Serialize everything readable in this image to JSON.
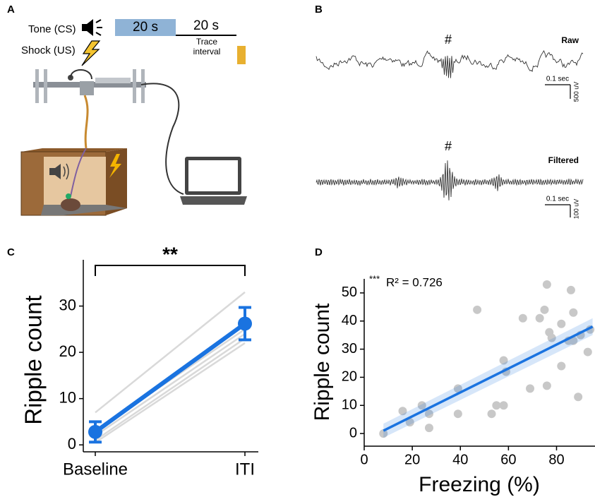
{
  "panel_labels": [
    "A",
    "B",
    "C",
    "D"
  ],
  "panel_a": {
    "tone_label": "Tone (CS)",
    "shock_label": "Shock (US)",
    "tone_duration": "20 s",
    "trace_duration": "20 s",
    "trace_label": [
      "Trace",
      "interval"
    ]
  },
  "panel_b": {
    "traces": [
      {
        "label": "Raw",
        "marker": "#",
        "time_scale": "0.1 sec",
        "amplitude_scale": "500 uV"
      },
      {
        "label": "Filtered",
        "marker": "#",
        "time_scale": "0.1 sec",
        "amplitude_scale": "100 uV"
      }
    ]
  },
  "chart_data": [
    {
      "type": "line",
      "ylabel": "Ripple count",
      "categories": [
        "Baseline",
        "ITI"
      ],
      "ylim": [
        -1.5,
        40
      ],
      "yticks": [
        0,
        10,
        20,
        30
      ],
      "annotation": "**",
      "series": [
        {
          "color": "#d9d9d9",
          "values": [
            7,
            33
          ]
        },
        {
          "color": "#d9d9d9",
          "values": [
            3,
            25
          ]
        },
        {
          "color": "#d9d9d9",
          "values": [
            2,
            24
          ]
        },
        {
          "color": "#d9d9d9",
          "values": [
            1,
            23
          ]
        },
        {
          "color": "#d9d9d9",
          "values": [
            0.5,
            22
          ]
        },
        {
          "color": "#1a73e0",
          "values": [
            2.8,
            26.2
          ],
          "error": [
            2.2,
            3.5
          ]
        }
      ]
    },
    {
      "type": "scatter",
      "xlabel": "Freezing (%)",
      "ylabel": "Ripple count",
      "xlim": [
        0,
        96
      ],
      "ylim": [
        -4.5,
        55
      ],
      "xticks": [
        0,
        20,
        40,
        60,
        80
      ],
      "yticks": [
        0,
        10,
        20,
        30,
        40,
        50
      ],
      "significance": "***",
      "annotation": "R² = 0.726",
      "series": [
        {
          "color": "#c8c8c8",
          "x": [
            8,
            16,
            19,
            24,
            27,
            27,
            39,
            39,
            47,
            58,
            59,
            53,
            55,
            58,
            66,
            69,
            73,
            75,
            76,
            77,
            78,
            76,
            82,
            82,
            86,
            87,
            85,
            87,
            89,
            90,
            93,
            94
          ],
          "values": [
            0,
            8,
            4,
            10,
            7,
            2,
            16,
            7,
            44,
            26,
            22,
            7,
            10,
            10,
            41,
            16,
            41,
            44,
            53,
            36,
            34,
            17,
            39,
            24,
            51,
            43,
            33,
            33,
            13,
            35,
            29,
            37
          ]
        }
      ],
      "fit": {
        "color": "#1a73e0",
        "x": [
          8,
          95
        ],
        "values": [
          1,
          38
        ],
        "lower": [
          -1.5,
          35
        ],
        "upper": [
          3.5,
          41
        ]
      }
    }
  ]
}
